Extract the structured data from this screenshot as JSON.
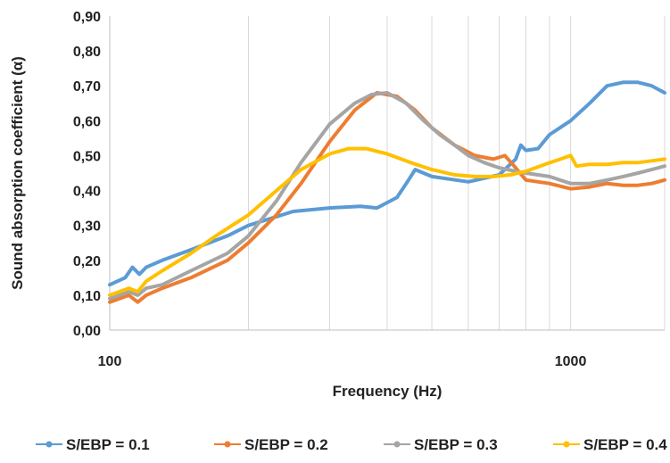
{
  "chart_data": {
    "type": "line",
    "title": "",
    "xlabel": "Frequency (Hz)",
    "ylabel": "Sound absorption coefficient (α)",
    "x_scale": "log",
    "xlim": [
      100,
      1600
    ],
    "ylim": [
      0,
      0.9
    ],
    "x_ticks": [
      100,
      1000
    ],
    "x_tick_labels": [
      "100",
      "1000"
    ],
    "y_ticks": [
      0,
      0.1,
      0.2,
      0.3,
      0.4,
      0.5,
      0.6,
      0.7,
      0.8,
      0.9
    ],
    "y_tick_labels": [
      "0,00",
      "0,10",
      "0,20",
      "0,30",
      "0,40",
      "0,50",
      "0,60",
      "0,70",
      "0,80",
      "0,90"
    ],
    "grid": "vertical-major-and-minor",
    "legend_position": "bottom",
    "series": [
      {
        "name": "S/EBP = 0.1",
        "color": "#5B9BD5",
        "x": [
          100,
          108,
          112,
          116,
          120,
          130,
          150,
          180,
          200,
          250,
          300,
          350,
          380,
          420,
          440,
          460,
          500,
          600,
          700,
          760,
          780,
          800,
          850,
          900,
          1000,
          1100,
          1200,
          1300,
          1400,
          1500,
          1600
        ],
        "y": [
          0.13,
          0.15,
          0.18,
          0.16,
          0.18,
          0.2,
          0.23,
          0.27,
          0.3,
          0.34,
          0.35,
          0.355,
          0.35,
          0.38,
          0.42,
          0.46,
          0.44,
          0.425,
          0.445,
          0.49,
          0.53,
          0.515,
          0.52,
          0.56,
          0.6,
          0.65,
          0.7,
          0.71,
          0.71,
          0.7,
          0.68
        ]
      },
      {
        "name": "S/EBP = 0.2",
        "color": "#ED7D31",
        "x": [
          100,
          110,
          115,
          120,
          130,
          150,
          180,
          200,
          230,
          260,
          300,
          340,
          380,
          420,
          460,
          500,
          560,
          620,
          680,
          720,
          760,
          800,
          900,
          1000,
          1100,
          1200,
          1300,
          1400,
          1500,
          1600
        ],
        "y": [
          0.08,
          0.1,
          0.08,
          0.1,
          0.12,
          0.15,
          0.2,
          0.25,
          0.33,
          0.42,
          0.54,
          0.63,
          0.68,
          0.67,
          0.63,
          0.58,
          0.53,
          0.5,
          0.49,
          0.5,
          0.465,
          0.43,
          0.42,
          0.405,
          0.41,
          0.42,
          0.415,
          0.415,
          0.42,
          0.43
        ]
      },
      {
        "name": "S/EBP = 0.3",
        "color": "#A5A5A5",
        "x": [
          100,
          110,
          115,
          120,
          130,
          150,
          180,
          200,
          230,
          260,
          300,
          340,
          370,
          400,
          440,
          480,
          520,
          560,
          600,
          650,
          700,
          760,
          800,
          900,
          1000,
          1100,
          1200,
          1300,
          1400,
          1500,
          1600
        ],
        "y": [
          0.09,
          0.11,
          0.1,
          0.12,
          0.13,
          0.17,
          0.22,
          0.27,
          0.37,
          0.48,
          0.59,
          0.65,
          0.675,
          0.68,
          0.65,
          0.6,
          0.56,
          0.53,
          0.5,
          0.48,
          0.465,
          0.455,
          0.45,
          0.44,
          0.42,
          0.42,
          0.43,
          0.44,
          0.45,
          0.46,
          0.47
        ]
      },
      {
        "name": "S/EBP = 0.4",
        "color": "#FFC000",
        "x": [
          100,
          110,
          115,
          120,
          130,
          150,
          170,
          200,
          230,
          260,
          300,
          330,
          360,
          400,
          450,
          500,
          560,
          620,
          680,
          740,
          800,
          880,
          950,
          1000,
          1030,
          1100,
          1200,
          1300,
          1400,
          1500,
          1600
        ],
        "y": [
          0.1,
          0.12,
          0.11,
          0.14,
          0.17,
          0.22,
          0.27,
          0.33,
          0.4,
          0.46,
          0.505,
          0.52,
          0.52,
          0.505,
          0.48,
          0.46,
          0.445,
          0.44,
          0.44,
          0.445,
          0.455,
          0.475,
          0.49,
          0.5,
          0.47,
          0.475,
          0.475,
          0.48,
          0.48,
          0.485,
          0.49
        ]
      }
    ]
  }
}
